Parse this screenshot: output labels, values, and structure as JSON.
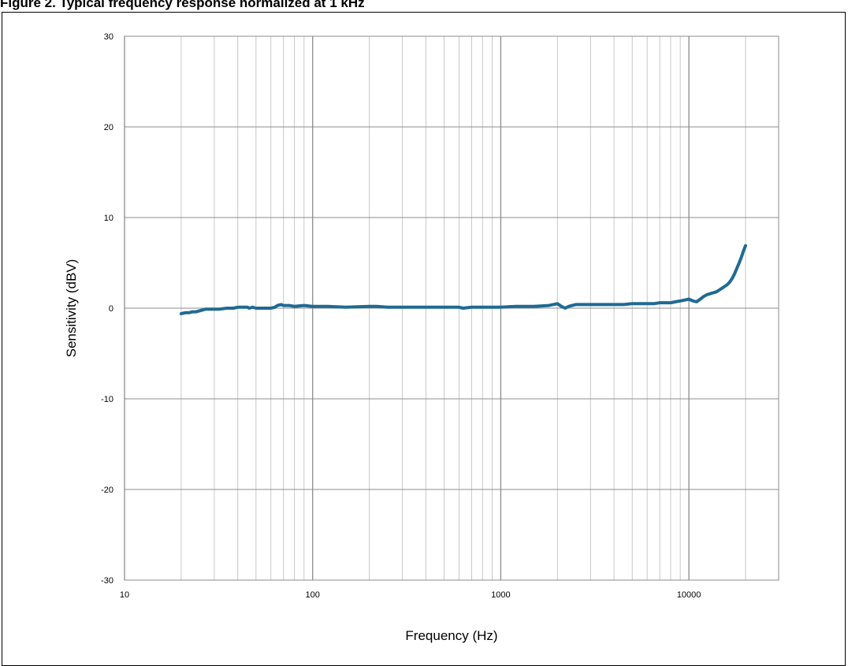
{
  "figure": {
    "caption": "Figure 2.      Typical frequency response normalized at 1 kHz"
  },
  "colors": {
    "series": "#1f6a93",
    "grid": "#c8c8c8",
    "grid_major": "#8c8c8c",
    "plot_border": "#8c8c8c"
  },
  "chart_data": {
    "type": "line",
    "title": "",
    "xlabel": "Frequency (Hz)",
    "ylabel": "Sensitivity (dBV)",
    "xscale": "log",
    "xlim": [
      10,
      30000
    ],
    "ylim": [
      -30,
      30
    ],
    "xticks": [
      10,
      100,
      1000,
      10000
    ],
    "xtick_labels": [
      "10",
      "100",
      "1000",
      "10000"
    ],
    "yticks": [
      30,
      20,
      10,
      0,
      -10,
      -20,
      -30
    ],
    "ytick_labels": [
      "30",
      "20",
      "10",
      "0",
      "-10",
      "-20",
      "-30"
    ],
    "grid": true,
    "legend": "none",
    "series": [
      {
        "x": [
          20,
          21,
          22,
          23,
          24,
          25,
          26,
          27,
          28,
          30,
          32,
          35,
          38,
          40,
          43,
          45,
          46,
          48,
          50,
          55,
          60,
          63,
          65,
          68,
          70,
          75,
          80,
          90,
          100,
          120,
          150,
          200,
          220,
          250,
          300,
          400,
          500,
          600,
          630,
          700,
          800,
          1000,
          1200,
          1500,
          1800,
          1900,
          2000,
          2100,
          2200,
          2300,
          2500,
          2800,
          3000,
          3300,
          3500,
          4000,
          4500,
          5000,
          5500,
          6000,
          6500,
          7000,
          7500,
          8000,
          8500,
          9000,
          9500,
          10000,
          10500,
          11000,
          11500,
          12000,
          12500,
          13000,
          13500,
          14000,
          14500,
          15000,
          15500,
          16000,
          16500,
          17000,
          17500,
          18000,
          18500,
          19000,
          19500,
          20000
        ],
        "y": [
          -0.6,
          -0.5,
          -0.5,
          -0.4,
          -0.4,
          -0.3,
          -0.2,
          -0.1,
          -0.1,
          -0.1,
          -0.1,
          0,
          0,
          0.1,
          0.1,
          0.1,
          0,
          0.1,
          0,
          0,
          0,
          0.1,
          0.3,
          0.4,
          0.3,
          0.3,
          0.2,
          0.3,
          0.2,
          0.2,
          0.1,
          0.2,
          0.2,
          0.1,
          0.1,
          0.1,
          0.1,
          0.1,
          0,
          0.1,
          0.1,
          0.1,
          0.2,
          0.2,
          0.3,
          0.4,
          0.5,
          0.2,
          0,
          0.2,
          0.4,
          0.4,
          0.4,
          0.4,
          0.4,
          0.4,
          0.4,
          0.5,
          0.5,
          0.5,
          0.5,
          0.6,
          0.6,
          0.6,
          0.7,
          0.8,
          0.9,
          1.0,
          0.8,
          0.7,
          1.0,
          1.3,
          1.5,
          1.6,
          1.7,
          1.8,
          2.0,
          2.2,
          2.4,
          2.6,
          2.9,
          3.3,
          3.8,
          4.4,
          5.0,
          5.6,
          6.3,
          6.9
        ]
      }
    ]
  }
}
